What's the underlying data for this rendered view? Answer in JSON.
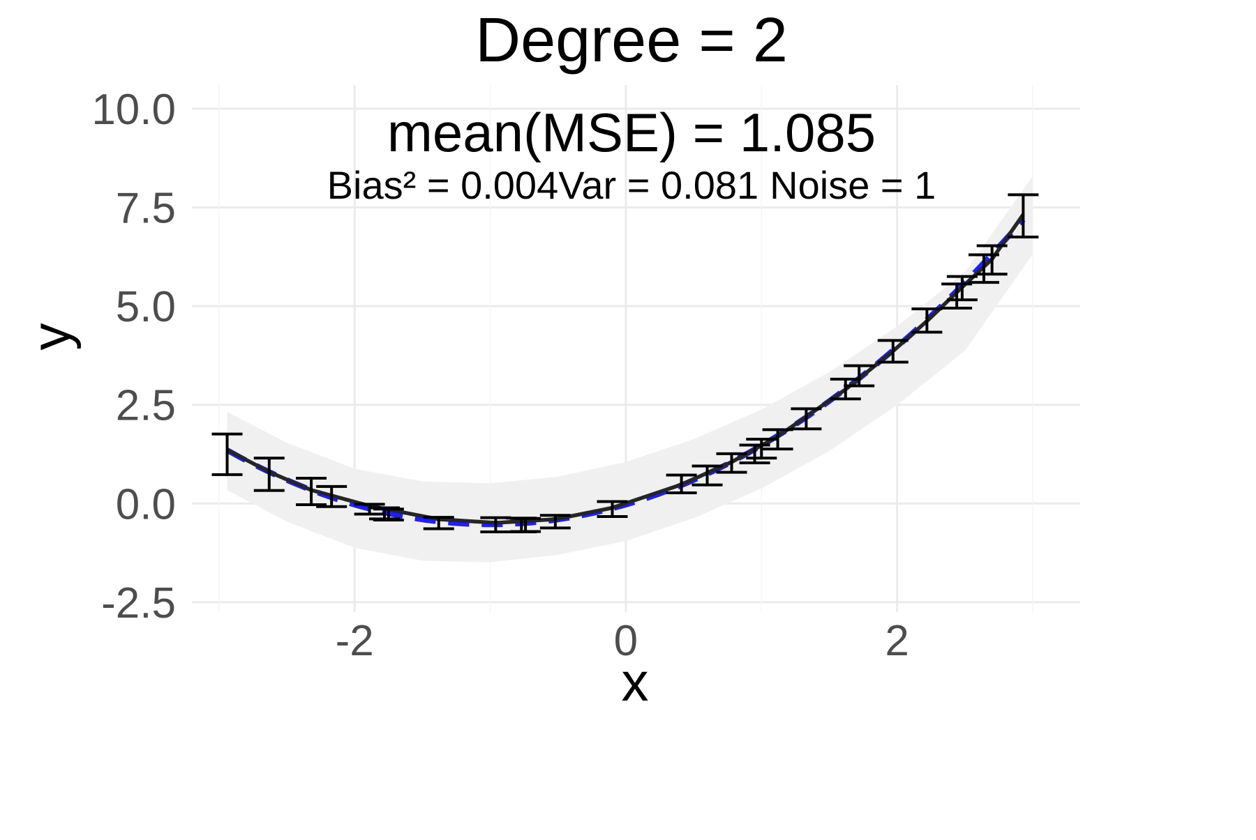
{
  "chart_data": {
    "type": "line",
    "title": "Degree = 2",
    "xlabel": "x",
    "ylabel": "y",
    "xlim": [
      -3.2,
      3.35
    ],
    "ylim": [
      -2.75,
      10.6
    ],
    "x_ticks": [
      -2,
      0,
      2
    ],
    "x_tick_labels": [
      "-2",
      "0",
      "2"
    ],
    "y_ticks": [
      -2.5,
      0,
      2.5,
      5,
      7.5,
      10
    ],
    "y_tick_labels": [
      "-2.5",
      "0.0",
      "2.5",
      "5.0",
      "7.5",
      "10.0"
    ],
    "grid": true,
    "legend": "none",
    "annotations": {
      "mse": "mean(MSE) = 1.085",
      "bias": "Bias² = 0.004",
      "var": "Var = 0.081",
      "noise": "Noise = 1"
    },
    "true_function": "y = 0.5 + 2x + 0.5 + ... (quadratic, dashed blue)",
    "points": [
      {
        "x": -2.94,
        "mean": 1.27,
        "lo": 0.73,
        "hi": 1.76
      },
      {
        "x": -2.63,
        "mean": 0.73,
        "lo": 0.33,
        "hi": 1.15
      },
      {
        "x": -2.32,
        "mean": 0.32,
        "lo": -0.03,
        "hi": 0.64
      },
      {
        "x": -2.17,
        "mean": 0.16,
        "lo": -0.08,
        "hi": 0.43
      },
      {
        "x": -1.89,
        "mean": -0.15,
        "lo": -0.27,
        "hi": -0.02
      },
      {
        "x": -1.78,
        "mean": -0.25,
        "lo": -0.39,
        "hi": -0.11
      },
      {
        "x": -1.75,
        "mean": -0.29,
        "lo": -0.42,
        "hi": -0.14
      },
      {
        "x": -1.38,
        "mean": -0.49,
        "lo": -0.64,
        "hi": -0.35
      },
      {
        "x": -0.96,
        "mean": -0.54,
        "lo": -0.72,
        "hi": -0.36
      },
      {
        "x": -0.77,
        "mean": -0.55,
        "lo": -0.72,
        "hi": -0.37
      },
      {
        "x": -0.74,
        "mean": -0.54,
        "lo": -0.71,
        "hi": -0.38
      },
      {
        "x": -0.52,
        "mean": -0.46,
        "lo": -0.62,
        "hi": -0.3
      },
      {
        "x": -0.1,
        "mean": -0.12,
        "lo": -0.33,
        "hi": 0.05
      },
      {
        "x": 0.41,
        "mean": 0.49,
        "lo": 0.27,
        "hi": 0.72
      },
      {
        "x": 0.6,
        "mean": 0.71,
        "lo": 0.47,
        "hi": 0.95
      },
      {
        "x": 0.78,
        "mean": 1.01,
        "lo": 0.79,
        "hi": 1.26
      },
      {
        "x": 0.95,
        "mean": 1.26,
        "lo": 1.03,
        "hi": 1.48
      },
      {
        "x": 1.0,
        "mean": 1.39,
        "lo": 1.15,
        "hi": 1.63
      },
      {
        "x": 1.12,
        "mean": 1.62,
        "lo": 1.38,
        "hi": 1.87
      },
      {
        "x": 1.33,
        "mean": 2.13,
        "lo": 1.89,
        "hi": 2.4
      },
      {
        "x": 1.62,
        "mean": 2.88,
        "lo": 2.65,
        "hi": 3.15
      },
      {
        "x": 1.72,
        "mean": 3.21,
        "lo": 2.98,
        "hi": 3.49
      },
      {
        "x": 1.97,
        "mean": 3.83,
        "lo": 3.58,
        "hi": 4.13
      },
      {
        "x": 2.22,
        "mean": 4.62,
        "lo": 4.34,
        "hi": 4.93
      },
      {
        "x": 2.44,
        "mean": 5.27,
        "lo": 4.95,
        "hi": 5.56
      },
      {
        "x": 2.48,
        "mean": 5.45,
        "lo": 5.16,
        "hi": 5.75
      },
      {
        "x": 2.64,
        "mean": 5.95,
        "lo": 5.6,
        "hi": 6.3
      },
      {
        "x": 2.7,
        "mean": 6.17,
        "lo": 5.81,
        "hi": 6.53
      },
      {
        "x": 2.93,
        "mean": 7.31,
        "lo": 6.75,
        "hi": 7.82
      }
    ],
    "series": [
      {
        "values_x": [
          -2.94,
          -2.63,
          -2.32,
          -1.89,
          -1.38,
          -0.96,
          -0.52,
          -0.1,
          0.41,
          0.78,
          1.12,
          1.62,
          1.97,
          2.22,
          2.48,
          2.7,
          2.93
        ],
        "values_y": [
          1.36,
          0.8,
          0.34,
          -0.06,
          -0.4,
          -0.49,
          -0.4,
          -0.11,
          0.48,
          1.05,
          1.7,
          2.89,
          3.86,
          4.62,
          5.48,
          6.19,
          7.32
        ]
      }
    ],
    "band": {
      "x": [
        -2.94,
        -2.5,
        -2.0,
        -1.5,
        -1.0,
        -0.5,
        0.0,
        0.5,
        1.0,
        1.5,
        2.0,
        2.5,
        3.0
      ],
      "lo": [
        0.34,
        -0.46,
        -1.12,
        -1.45,
        -1.49,
        -1.3,
        -0.95,
        -0.37,
        0.38,
        1.33,
        2.49,
        3.87,
        6.31
      ],
      "hi": [
        2.32,
        1.54,
        0.88,
        0.56,
        0.51,
        0.68,
        1.05,
        1.63,
        2.38,
        3.33,
        4.49,
        5.87,
        8.29
      ]
    },
    "colors": {
      "fit_line": "#262626",
      "true_line": "#1f1fff",
      "error_bar": "#000000",
      "band": "#f0f0f0",
      "grid": "#ebebeb"
    }
  }
}
